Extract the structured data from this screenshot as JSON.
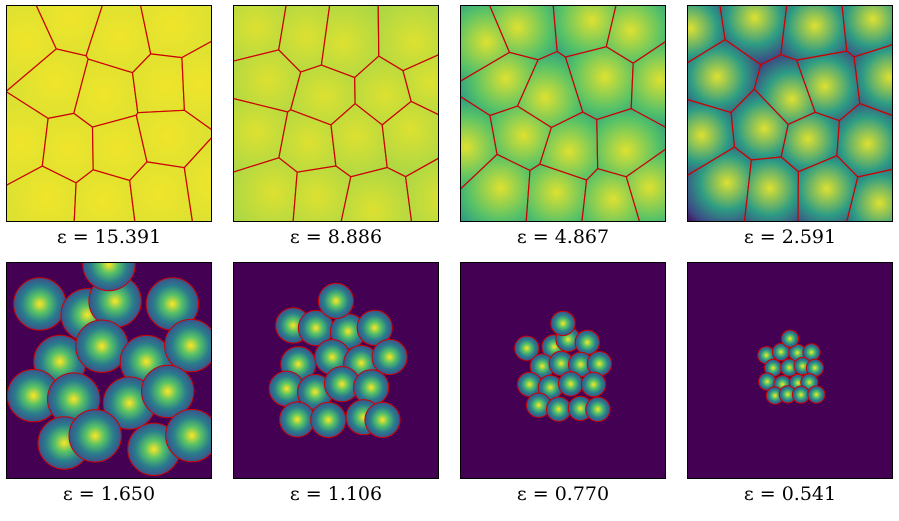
{
  "panels": [
    {
      "label": "ε = 15.391",
      "eps": 15.391,
      "kind": "voronoi"
    },
    {
      "label": "ε = 8.886",
      "eps": 8.886,
      "kind": "voronoi"
    },
    {
      "label": "ε = 4.867",
      "eps": 4.867,
      "kind": "voronoi"
    },
    {
      "label": "ε = 2.591",
      "eps": 2.591,
      "kind": "voronoi"
    },
    {
      "label": "ε = 1.650",
      "eps": 1.65,
      "kind": "clusters"
    },
    {
      "label": "ε = 1.106",
      "eps": 1.106,
      "kind": "clusters"
    },
    {
      "label": "ε = 0.770",
      "eps": 0.77,
      "kind": "clusters"
    },
    {
      "label": "ε = 0.541",
      "eps": 0.541,
      "kind": "clusters"
    }
  ],
  "colors": {
    "background_dark": "#440154",
    "cell_mid": "#21918c",
    "cell_bright": "#fde725",
    "boundary": "#cc0000",
    "frame": "#000000"
  }
}
